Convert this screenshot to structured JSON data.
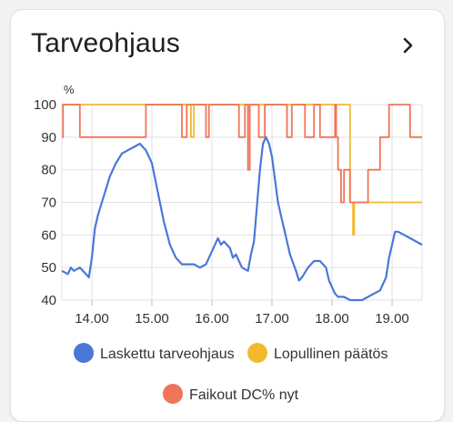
{
  "card": {
    "title": "Tarveohjaus",
    "more_icon": "chevron-right-icon"
  },
  "chart_data": {
    "type": "line",
    "y_unit_label": "%",
    "ylim": [
      40,
      100
    ],
    "y_ticks": [
      "40",
      "50",
      "60",
      "70",
      "80",
      "90",
      "100"
    ],
    "xlim": [
      13.5,
      19.5
    ],
    "x_ticks": [
      {
        "label": "14.00",
        "value": 14
      },
      {
        "label": "15.00",
        "value": 15
      },
      {
        "label": "16.00",
        "value": 16
      },
      {
        "label": "17.00",
        "value": 17
      },
      {
        "label": "18.00",
        "value": 18
      },
      {
        "label": "19.00",
        "value": 19
      }
    ],
    "grid": true,
    "legend_position": "bottom",
    "series": [
      {
        "name": "Laskettu tarveohjaus",
        "color": "#4b78d6",
        "step": false,
        "points": [
          [
            13.5,
            49
          ],
          [
            13.6,
            48
          ],
          [
            13.65,
            50
          ],
          [
            13.7,
            49
          ],
          [
            13.8,
            50
          ],
          [
            13.9,
            48
          ],
          [
            13.95,
            47
          ],
          [
            14.0,
            53
          ],
          [
            14.05,
            62
          ],
          [
            14.1,
            66
          ],
          [
            14.2,
            72
          ],
          [
            14.3,
            78
          ],
          [
            14.4,
            82
          ],
          [
            14.5,
            85
          ],
          [
            14.6,
            86
          ],
          [
            14.7,
            87
          ],
          [
            14.8,
            88
          ],
          [
            14.9,
            86
          ],
          [
            15.0,
            82
          ],
          [
            15.1,
            73
          ],
          [
            15.2,
            64
          ],
          [
            15.3,
            57
          ],
          [
            15.4,
            53
          ],
          [
            15.5,
            51
          ],
          [
            15.6,
            51
          ],
          [
            15.7,
            51
          ],
          [
            15.8,
            50
          ],
          [
            15.9,
            51
          ],
          [
            16.0,
            55
          ],
          [
            16.05,
            57
          ],
          [
            16.1,
            59
          ],
          [
            16.15,
            57
          ],
          [
            16.2,
            58
          ],
          [
            16.3,
            56
          ],
          [
            16.35,
            53
          ],
          [
            16.4,
            54
          ],
          [
            16.45,
            52
          ],
          [
            16.5,
            50
          ],
          [
            16.6,
            49
          ],
          [
            16.65,
            54
          ],
          [
            16.7,
            58
          ],
          [
            16.8,
            80
          ],
          [
            16.85,
            88
          ],
          [
            16.9,
            90
          ],
          [
            16.95,
            88
          ],
          [
            17.0,
            84
          ],
          [
            17.1,
            70
          ],
          [
            17.2,
            62
          ],
          [
            17.3,
            54
          ],
          [
            17.4,
            49
          ],
          [
            17.45,
            46
          ],
          [
            17.5,
            47
          ],
          [
            17.6,
            50
          ],
          [
            17.7,
            52
          ],
          [
            17.8,
            52
          ],
          [
            17.9,
            50
          ],
          [
            17.95,
            46
          ],
          [
            18.0,
            44
          ],
          [
            18.05,
            42
          ],
          [
            18.1,
            41
          ],
          [
            18.2,
            41
          ],
          [
            18.3,
            40
          ],
          [
            18.4,
            40
          ],
          [
            18.5,
            40
          ],
          [
            18.6,
            41
          ],
          [
            18.7,
            42
          ],
          [
            18.8,
            43
          ],
          [
            18.9,
            47
          ],
          [
            18.95,
            53
          ],
          [
            19.0,
            57
          ],
          [
            19.05,
            61
          ],
          [
            19.1,
            61
          ],
          [
            19.2,
            60
          ],
          [
            19.3,
            59
          ],
          [
            19.4,
            58
          ],
          [
            19.5,
            57
          ]
        ]
      },
      {
        "name": "Lopullinen päätös",
        "color": "#f2b92c",
        "step": true,
        "points": [
          [
            13.5,
            100
          ],
          [
            15.65,
            100
          ],
          [
            15.65,
            90
          ],
          [
            15.7,
            90
          ],
          [
            15.7,
            100
          ],
          [
            18.3,
            100
          ],
          [
            18.3,
            70
          ],
          [
            18.35,
            70
          ],
          [
            18.35,
            60
          ],
          [
            18.37,
            60
          ],
          [
            18.37,
            70
          ],
          [
            19.5,
            70
          ]
        ]
      },
      {
        "name": "Faikout DC% nyt",
        "color": "#f0745a",
        "step": true,
        "points": [
          [
            13.5,
            90
          ],
          [
            13.52,
            90
          ],
          [
            13.52,
            100
          ],
          [
            13.8,
            100
          ],
          [
            13.8,
            90
          ],
          [
            14.9,
            90
          ],
          [
            14.9,
            100
          ],
          [
            15.5,
            100
          ],
          [
            15.5,
            90
          ],
          [
            15.58,
            90
          ],
          [
            15.58,
            100
          ],
          [
            15.9,
            100
          ],
          [
            15.9,
            90
          ],
          [
            15.95,
            90
          ],
          [
            15.95,
            100
          ],
          [
            16.45,
            100
          ],
          [
            16.45,
            90
          ],
          [
            16.55,
            90
          ],
          [
            16.55,
            100
          ],
          [
            16.6,
            100
          ],
          [
            16.6,
            80
          ],
          [
            16.63,
            80
          ],
          [
            16.63,
            100
          ],
          [
            16.78,
            100
          ],
          [
            16.78,
            90
          ],
          [
            16.88,
            90
          ],
          [
            16.88,
            100
          ],
          [
            17.25,
            100
          ],
          [
            17.25,
            90
          ],
          [
            17.33,
            90
          ],
          [
            17.33,
            100
          ],
          [
            17.55,
            100
          ],
          [
            17.55,
            90
          ],
          [
            17.7,
            90
          ],
          [
            17.7,
            100
          ],
          [
            17.8,
            100
          ],
          [
            17.8,
            90
          ],
          [
            18.05,
            90
          ],
          [
            18.05,
            100
          ],
          [
            18.07,
            100
          ],
          [
            18.07,
            90
          ],
          [
            18.1,
            90
          ],
          [
            18.1,
            80
          ],
          [
            18.15,
            80
          ],
          [
            18.15,
            70
          ],
          [
            18.2,
            70
          ],
          [
            18.2,
            80
          ],
          [
            18.3,
            80
          ],
          [
            18.3,
            70
          ],
          [
            18.6,
            70
          ],
          [
            18.6,
            80
          ],
          [
            18.8,
            80
          ],
          [
            18.8,
            90
          ],
          [
            18.95,
            90
          ],
          [
            18.95,
            100
          ],
          [
            19.3,
            100
          ],
          [
            19.3,
            90
          ],
          [
            19.5,
            90
          ]
        ]
      }
    ]
  }
}
